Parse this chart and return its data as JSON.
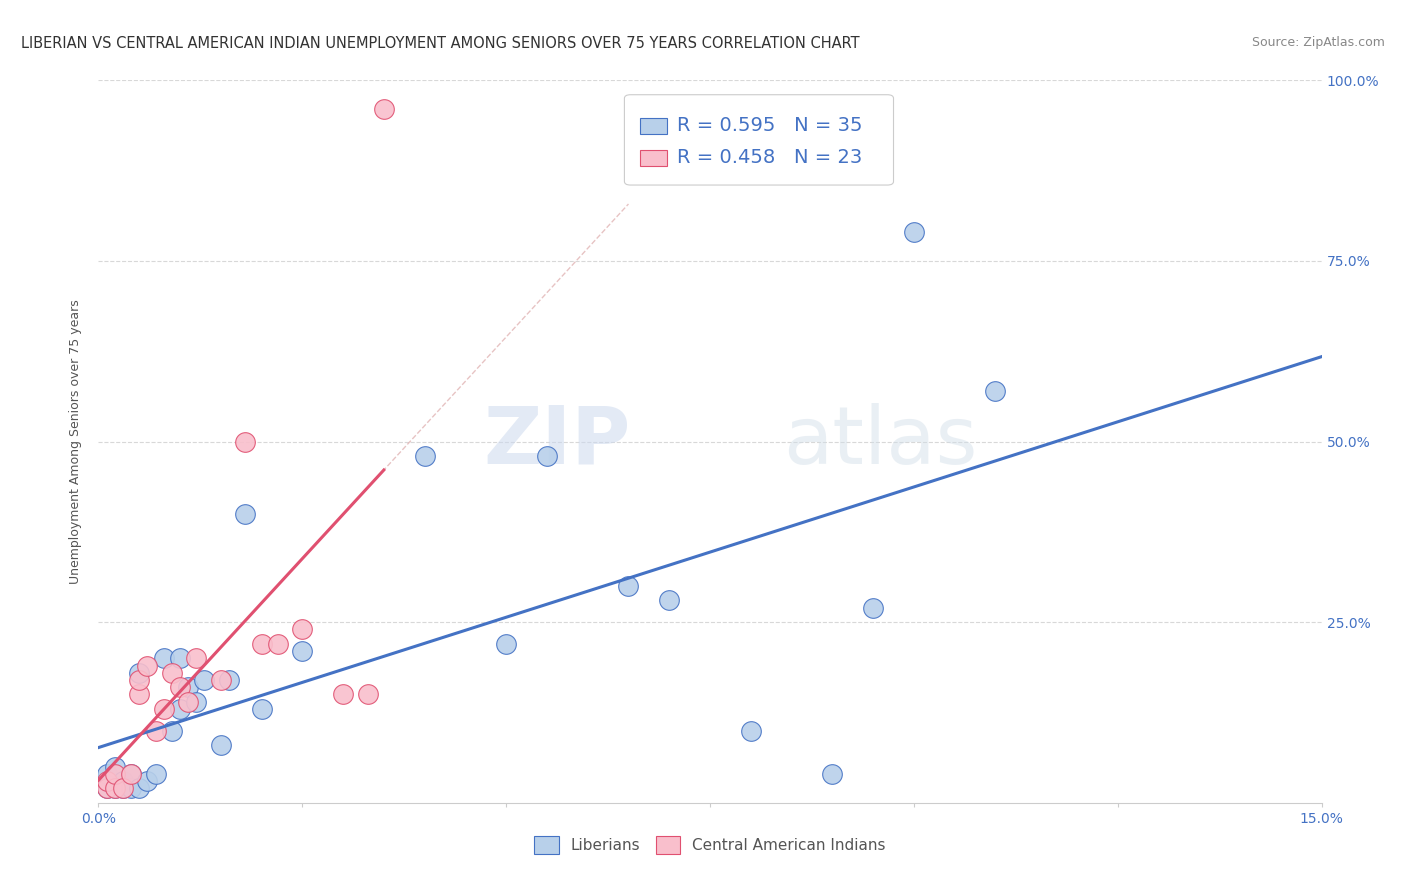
{
  "title": "LIBERIAN VS CENTRAL AMERICAN INDIAN UNEMPLOYMENT AMONG SENIORS OVER 75 YEARS CORRELATION CHART",
  "source": "Source: ZipAtlas.com",
  "ylabel": "Unemployment Among Seniors over 75 years",
  "xlim": [
    0.0,
    0.15
  ],
  "ylim": [
    0.0,
    1.0
  ],
  "xticks": [
    0.0,
    0.025,
    0.05,
    0.075,
    0.1,
    0.125,
    0.15
  ],
  "xticklabels": [
    "0.0%",
    "",
    "",
    "",
    "",
    "",
    "15.0%"
  ],
  "yticks": [
    0.0,
    0.25,
    0.5,
    0.75,
    1.0
  ],
  "right_yticklabels": [
    "",
    "25.0%",
    "50.0%",
    "75.0%",
    "100.0%"
  ],
  "liberian_R": 0.595,
  "liberian_N": 35,
  "central_american_R": 0.458,
  "central_american_N": 23,
  "liberian_color": "#b8d0ea",
  "central_american_color": "#f9bfcc",
  "line_liberian_color": "#4472c4",
  "line_central_color": "#e05070",
  "text_color": "#4472c4",
  "liberian_x": [
    0.001,
    0.001,
    0.001,
    0.002,
    0.002,
    0.003,
    0.003,
    0.004,
    0.004,
    0.005,
    0.005,
    0.006,
    0.007,
    0.008,
    0.009,
    0.01,
    0.01,
    0.011,
    0.012,
    0.013,
    0.015,
    0.016,
    0.018,
    0.02,
    0.025,
    0.04,
    0.05,
    0.055,
    0.065,
    0.07,
    0.08,
    0.09,
    0.095,
    0.1,
    0.11
  ],
  "liberian_y": [
    0.02,
    0.03,
    0.04,
    0.02,
    0.05,
    0.03,
    0.02,
    0.02,
    0.04,
    0.18,
    0.02,
    0.03,
    0.04,
    0.2,
    0.1,
    0.13,
    0.2,
    0.16,
    0.14,
    0.17,
    0.08,
    0.17,
    0.4,
    0.13,
    0.21,
    0.48,
    0.22,
    0.48,
    0.3,
    0.28,
    0.1,
    0.04,
    0.27,
    0.79,
    0.57
  ],
  "central_x": [
    0.001,
    0.001,
    0.002,
    0.002,
    0.003,
    0.004,
    0.005,
    0.005,
    0.006,
    0.007,
    0.008,
    0.009,
    0.01,
    0.011,
    0.012,
    0.015,
    0.018,
    0.02,
    0.022,
    0.025,
    0.03,
    0.033,
    0.035
  ],
  "central_y": [
    0.02,
    0.03,
    0.02,
    0.04,
    0.02,
    0.04,
    0.15,
    0.17,
    0.19,
    0.1,
    0.13,
    0.18,
    0.16,
    0.14,
    0.2,
    0.17,
    0.5,
    0.22,
    0.22,
    0.24,
    0.15,
    0.15,
    0.96
  ],
  "watermark_zip": "ZIP",
  "watermark_atlas": "atlas",
  "background_color": "#ffffff",
  "grid_color": "#d8d8d8",
  "title_fontsize": 10.5,
  "axis_label_fontsize": 9,
  "tick_fontsize": 10,
  "legend_fontsize": 14
}
